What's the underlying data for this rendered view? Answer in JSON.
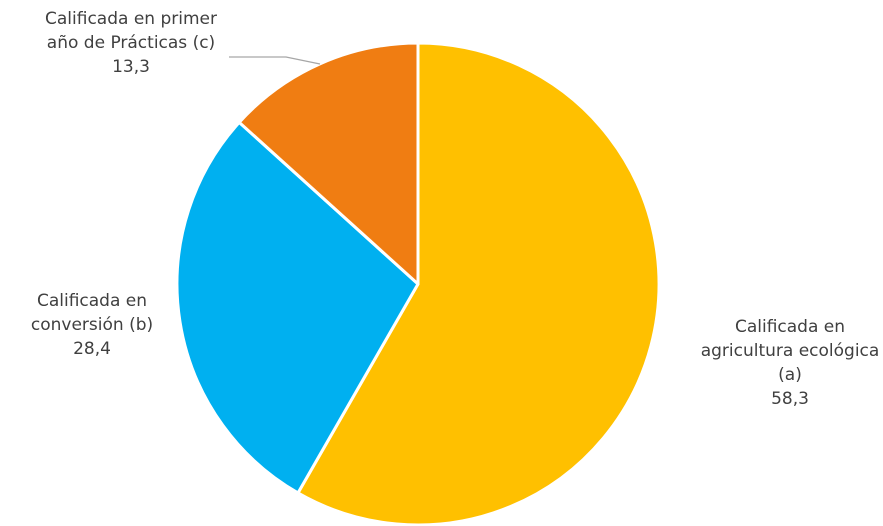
{
  "chart_data": {
    "type": "pie",
    "title": "",
    "slices": [
      {
        "label_lines": [
          "Calificada en",
          "agricultura ecológica",
          "(a)"
        ],
        "value": 58.3,
        "value_text": "58,3",
        "color": "#FFC000"
      },
      {
        "label_lines": [
          "Calificada en",
          "conversión (b)"
        ],
        "value": 28.4,
        "value_text": "28,4",
        "color": "#00B0F0"
      },
      {
        "label_lines": [
          "Calificada en primer",
          "año de Prácticas (c)"
        ],
        "value": 13.3,
        "value_text": "13,3",
        "color": "#F07D12"
      }
    ],
    "legend": "none",
    "start_angle": "12 o'clock",
    "direction": "clockwise"
  }
}
